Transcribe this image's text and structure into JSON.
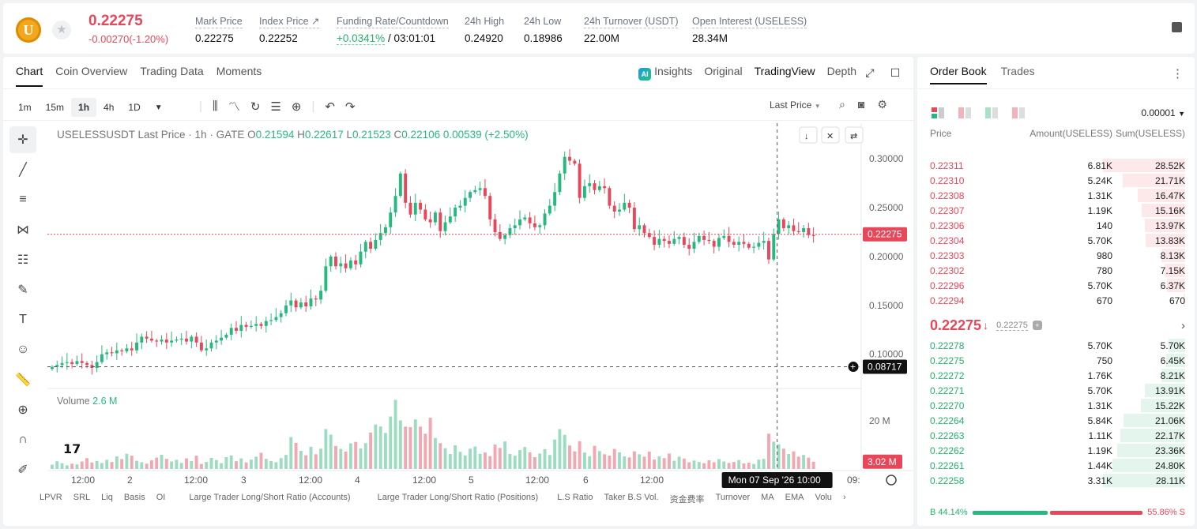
{
  "header": {
    "coin_letter": "U",
    "last_price": "0.22275",
    "change": "-0.00270(-1.20%)",
    "stats": [
      {
        "label": "Mark Price",
        "value": "0.22275"
      },
      {
        "label": "Index Price ↗",
        "value": "0.22252"
      },
      {
        "label": "Funding Rate/Countdown",
        "value_green": "+0.0341%",
        "value_rest": " / 03:01:01"
      },
      {
        "label": "24h High",
        "value": "0.24920"
      },
      {
        "label": "24h Low",
        "value": "0.18986"
      },
      {
        "label": "24h Turnover (USDT)",
        "value": "22.00M"
      },
      {
        "label": "Open Interest (USELESS)",
        "value": "28.34M"
      }
    ]
  },
  "chart_panel": {
    "tabs": [
      "Chart",
      "Coin Overview",
      "Trading Data",
      "Moments"
    ],
    "view_tabs": {
      "insights": "Insights",
      "original": "Original",
      "tradingview": "TradingView",
      "depth": "Depth"
    },
    "intervals": [
      "1m",
      "15m",
      "1h",
      "4h",
      "1D"
    ],
    "active_interval": "1h",
    "price_source": "Last Price",
    "legend": {
      "symbol": "USELESSUSDT Last Price · 1h · GATE",
      "o": "0.21594",
      "h": "0.22617",
      "l": "0.21523",
      "c": "0.22106",
      "change": "0.00539 (+2.50%)"
    },
    "volume_label": "Volume",
    "volume_value": "2.6 M",
    "bottom_indicators": [
      "LPVR",
      "SRL",
      "Liq",
      "Basis",
      "OI",
      "Large Trader Long/Short Ratio (Accounts)",
      "Large Trader Long/Short Ratio (Positions)",
      "L.S Ratio",
      "Taker B.S Vol.",
      "资金费率",
      "Turnover",
      "MA",
      "EMA",
      "Volu"
    ]
  },
  "chart_data": {
    "type": "candlestick",
    "price_axis": {
      "ticks": [
        "0.30000",
        "0.25000",
        "0.20000",
        "0.15000",
        "0.10000"
      ],
      "ylim": [
        0.065,
        0.33
      ]
    },
    "volume_axis": {
      "ticks": [
        "20 M"
      ],
      "ylim": [
        0,
        32
      ]
    },
    "x_ticks": [
      "12:00",
      "2",
      "12:00",
      "3",
      "12:00",
      "4",
      "12:00",
      "5",
      "12:00",
      "6",
      "12:00",
      "8",
      "09:"
    ],
    "last_price_label": "0.22275",
    "crosshair_price_label": "0.08717",
    "crosshair_time_label": "Mon 07 Sep '26   10:00",
    "volume_last_label": "3.02 M",
    "closes": [
      0.087,
      0.089,
      0.091,
      0.092,
      0.09,
      0.093,
      0.091,
      0.089,
      0.086,
      0.092,
      0.1,
      0.102,
      0.101,
      0.104,
      0.103,
      0.106,
      0.104,
      0.112,
      0.118,
      0.116,
      0.114,
      0.113,
      0.115,
      0.112,
      0.114,
      0.115,
      0.116,
      0.113,
      0.118,
      0.112,
      0.104,
      0.106,
      0.112,
      0.114,
      0.117,
      0.12,
      0.127,
      0.124,
      0.13,
      0.128,
      0.129,
      0.131,
      0.129,
      0.134,
      0.135,
      0.138,
      0.142,
      0.15,
      0.155,
      0.148,
      0.153,
      0.149,
      0.157,
      0.156,
      0.165,
      0.19,
      0.2,
      0.19,
      0.193,
      0.188,
      0.196,
      0.192,
      0.205,
      0.215,
      0.208,
      0.217,
      0.224,
      0.23,
      0.245,
      0.262,
      0.285,
      0.255,
      0.243,
      0.255,
      0.248,
      0.238,
      0.235,
      0.245,
      0.226,
      0.235,
      0.241,
      0.25,
      0.252,
      0.26,
      0.266,
      0.268,
      0.27,
      0.262,
      0.238,
      0.225,
      0.218,
      0.222,
      0.229,
      0.232,
      0.238,
      0.24,
      0.234,
      0.23,
      0.232,
      0.244,
      0.252,
      0.266,
      0.285,
      0.302,
      0.298,
      0.295,
      0.26,
      0.272,
      0.275,
      0.268,
      0.272,
      0.27,
      0.252,
      0.246,
      0.248,
      0.255,
      0.25,
      0.228,
      0.232,
      0.224,
      0.22,
      0.212,
      0.218,
      0.216,
      0.213,
      0.218,
      0.22,
      0.212,
      0.208,
      0.215,
      0.221,
      0.217,
      0.216,
      0.21,
      0.219,
      0.221,
      0.215,
      0.212,
      0.215,
      0.213,
      0.209,
      0.21,
      0.214,
      0.216,
      0.197,
      0.223,
      0.238,
      0.229,
      0.232,
      0.226,
      0.225,
      0.229,
      0.222,
      0.221
    ],
    "volumes": [
      1.8,
      3.2,
      2.4,
      1.5,
      2.2,
      1.9,
      3.1,
      4.5,
      2.7,
      3.3,
      2.5,
      3.8,
      2.9,
      5.2,
      4.1,
      6.3,
      5.5,
      3.4,
      2.8,
      2.2,
      3.6,
      4.7,
      5.9,
      4.2,
      3.1,
      3.8,
      2.5,
      4.4,
      3.3,
      5.5,
      2.1,
      2.9,
      4.6,
      3.7,
      2.4,
      4.9,
      5.6,
      3.2,
      4.4,
      2.7,
      3.9,
      5.1,
      6.7,
      4.2,
      3.3,
      2.8,
      4.5,
      5.8,
      13.2,
      10.8,
      7.5,
      5.7,
      9.2,
      6.1,
      8.4,
      16.5,
      14.2,
      9.5,
      8.3,
      7.2,
      10.6,
      11.2,
      8.5,
      10.7,
      15.1,
      18.4,
      17.6,
      14.9,
      21.7,
      28.6,
      20.1,
      17.5,
      17.3,
      20.5,
      17.5,
      14.6,
      21.2,
      12.8,
      10.7,
      8.6,
      6.2,
      9.8,
      7.1,
      5.6,
      8.4,
      9.3,
      6.3,
      6.8,
      5.3,
      10.1,
      8.7,
      11.4,
      6.2,
      5.5,
      7.8,
      9.1,
      6.9,
      4.9,
      6.4,
      8.2,
      5.8,
      12.2,
      16.5,
      14.1,
      9.7,
      7.3,
      11.5,
      6.8,
      5.2,
      9.6,
      7.4,
      6.1,
      5.5,
      8.3,
      6.9,
      5.2,
      4.8,
      7.3,
      6.1,
      5.1,
      7.2,
      3.9,
      5.2,
      4.5,
      6.4,
      3.4,
      5.1,
      4.3,
      2.8,
      3.5,
      2.9,
      2.4,
      3.6,
      2.8,
      4.1,
      3.1,
      2.5,
      2.9,
      3.7,
      2.3,
      2.6,
      2.1,
      3.9,
      4.2,
      14.6,
      11.3,
      10.2,
      8.4,
      6.2,
      7.3,
      5.1,
      5.8,
      4.7,
      3.02
    ]
  },
  "order_book": {
    "tabs": [
      "Order Book",
      "Trades"
    ],
    "precision": "0.00001",
    "columns": [
      "Price",
      "Amount(USELESS)",
      "Sum(USELESS)"
    ],
    "asks": [
      {
        "price": "0.22311",
        "amount": "6.81K",
        "sum": "28.52K",
        "depth": 1.0
      },
      {
        "price": "0.22310",
        "amount": "5.24K",
        "sum": "21.71K",
        "depth": 0.76
      },
      {
        "price": "0.22308",
        "amount": "1.31K",
        "sum": "16.47K",
        "depth": 0.58
      },
      {
        "price": "0.22307",
        "amount": "1.19K",
        "sum": "15.16K",
        "depth": 0.53
      },
      {
        "price": "0.22306",
        "amount": "140",
        "sum": "13.97K",
        "depth": 0.49
      },
      {
        "price": "0.22304",
        "amount": "5.70K",
        "sum": "13.83K",
        "depth": 0.48
      },
      {
        "price": "0.22303",
        "amount": "980",
        "sum": "8.13K",
        "depth": 0.29
      },
      {
        "price": "0.22302",
        "amount": "780",
        "sum": "7.15K",
        "depth": 0.25
      },
      {
        "price": "0.22296",
        "amount": "5.70K",
        "sum": "6.37K",
        "depth": 0.22
      },
      {
        "price": "0.22294",
        "amount": "670",
        "sum": "670",
        "depth": 0.02
      }
    ],
    "mid_price": "0.22275",
    "mid_arrow": "↓",
    "mark_price": "0.22275",
    "bids": [
      {
        "price": "0.22278",
        "amount": "5.70K",
        "sum": "5.70K",
        "depth": 0.2
      },
      {
        "price": "0.22275",
        "amount": "750",
        "sum": "6.45K",
        "depth": 0.23
      },
      {
        "price": "0.22272",
        "amount": "1.76K",
        "sum": "8.21K",
        "depth": 0.29
      },
      {
        "price": "0.22271",
        "amount": "5.70K",
        "sum": "13.91K",
        "depth": 0.49
      },
      {
        "price": "0.22270",
        "amount": "1.31K",
        "sum": "15.22K",
        "depth": 0.54
      },
      {
        "price": "0.22264",
        "amount": "5.84K",
        "sum": "21.06K",
        "depth": 0.75
      },
      {
        "price": "0.22263",
        "amount": "1.11K",
        "sum": "22.17K",
        "depth": 0.79
      },
      {
        "price": "0.22262",
        "amount": "1.19K",
        "sum": "23.36K",
        "depth": 0.83
      },
      {
        "price": "0.22261",
        "amount": "1.44K",
        "sum": "24.80K",
        "depth": 0.88
      },
      {
        "price": "0.22258",
        "amount": "3.31K",
        "sum": "28.11K",
        "depth": 1.0
      }
    ],
    "buy_label": "B 44.14%",
    "sell_label": "55.86% S",
    "buy_ratio": 0.4414
  },
  "colors": {
    "up": "#26b97e",
    "down": "#e8475a",
    "up_vol": "#9edcc2",
    "down_vol": "#f2a7b1"
  }
}
